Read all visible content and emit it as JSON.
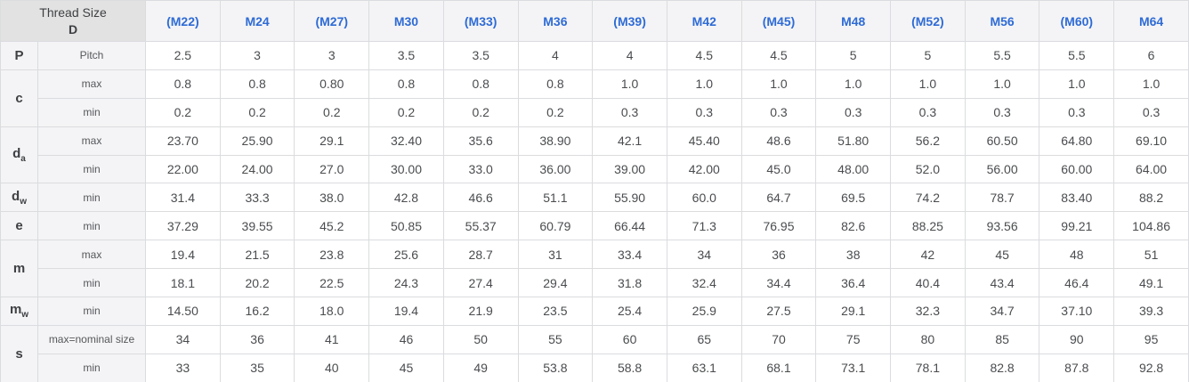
{
  "colors": {
    "header_link_blue": "#2e6bd5",
    "header_bg": "#f4f4f6",
    "corner_bg": "#e2e2e2",
    "label_bg": "#f4f4f6",
    "border": "#dbdcdf",
    "value_text": "#4a4c4f"
  },
  "chart_data": {
    "type": "table",
    "corner": {
      "line1": "Thread Size",
      "line2": "D"
    },
    "thread_sizes": [
      "(M22)",
      "M24",
      "(M27)",
      "M30",
      "(M33)",
      "M36",
      "(M39)",
      "M42",
      "(M45)",
      "M48",
      "(M52)",
      "M56",
      "(M60)",
      "M64"
    ],
    "rows": [
      {
        "symbol": "P",
        "symbol_sub": "",
        "entries": [
          {
            "label": "Pitch",
            "values": [
              "2.5",
              "3",
              "3",
              "3.5",
              "3.5",
              "4",
              "4",
              "4.5",
              "4.5",
              "5",
              "5",
              "5.5",
              "5.5",
              "6"
            ]
          }
        ]
      },
      {
        "symbol": "c",
        "symbol_sub": "",
        "entries": [
          {
            "label": "max",
            "values": [
              "0.8",
              "0.8",
              "0.80",
              "0.8",
              "0.8",
              "0.8",
              "1.0",
              "1.0",
              "1.0",
              "1.0",
              "1.0",
              "1.0",
              "1.0",
              "1.0"
            ]
          },
          {
            "label": "min",
            "values": [
              "0.2",
              "0.2",
              "0.2",
              "0.2",
              "0.2",
              "0.2",
              "0.3",
              "0.3",
              "0.3",
              "0.3",
              "0.3",
              "0.3",
              "0.3",
              "0.3"
            ]
          }
        ]
      },
      {
        "symbol": "d",
        "symbol_sub": "a",
        "entries": [
          {
            "label": "max",
            "values": [
              "23.70",
              "25.90",
              "29.1",
              "32.40",
              "35.6",
              "38.90",
              "42.1",
              "45.40",
              "48.6",
              "51.80",
              "56.2",
              "60.50",
              "64.80",
              "69.10"
            ]
          },
          {
            "label": "min",
            "values": [
              "22.00",
              "24.00",
              "27.0",
              "30.00",
              "33.0",
              "36.00",
              "39.00",
              "42.00",
              "45.0",
              "48.00",
              "52.0",
              "56.00",
              "60.00",
              "64.00"
            ]
          }
        ]
      },
      {
        "symbol": "d",
        "symbol_sub": "w",
        "entries": [
          {
            "label": "min",
            "values": [
              "31.4",
              "33.3",
              "38.0",
              "42.8",
              "46.6",
              "51.1",
              "55.90",
              "60.0",
              "64.7",
              "69.5",
              "74.2",
              "78.7",
              "83.40",
              "88.2"
            ]
          }
        ]
      },
      {
        "symbol": "e",
        "symbol_sub": "",
        "entries": [
          {
            "label": "min",
            "values": [
              "37.29",
              "39.55",
              "45.2",
              "50.85",
              "55.37",
              "60.79",
              "66.44",
              "71.3",
              "76.95",
              "82.6",
              "88.25",
              "93.56",
              "99.21",
              "104.86"
            ]
          }
        ]
      },
      {
        "symbol": "m",
        "symbol_sub": "",
        "entries": [
          {
            "label": "max",
            "values": [
              "19.4",
              "21.5",
              "23.8",
              "25.6",
              "28.7",
              "31",
              "33.4",
              "34",
              "36",
              "38",
              "42",
              "45",
              "48",
              "51"
            ]
          },
          {
            "label": "min",
            "values": [
              "18.1",
              "20.2",
              "22.5",
              "24.3",
              "27.4",
              "29.4",
              "31.8",
              "32.4",
              "34.4",
              "36.4",
              "40.4",
              "43.4",
              "46.4",
              "49.1"
            ]
          }
        ]
      },
      {
        "symbol": "m",
        "symbol_sub": "w",
        "entries": [
          {
            "label": "min",
            "values": [
              "14.50",
              "16.2",
              "18.0",
              "19.4",
              "21.9",
              "23.5",
              "25.4",
              "25.9",
              "27.5",
              "29.1",
              "32.3",
              "34.7",
              "37.10",
              "39.3"
            ]
          }
        ]
      },
      {
        "symbol": "s",
        "symbol_sub": "",
        "entries": [
          {
            "label": "max=nominal size",
            "values": [
              "34",
              "36",
              "41",
              "46",
              "50",
              "55",
              "60",
              "65",
              "70",
              "75",
              "80",
              "85",
              "90",
              "95"
            ]
          },
          {
            "label": "min",
            "values": [
              "33",
              "35",
              "40",
              "45",
              "49",
              "53.8",
              "58.8",
              "63.1",
              "68.1",
              "73.1",
              "78.1",
              "82.8",
              "87.8",
              "92.8"
            ]
          }
        ]
      }
    ]
  }
}
